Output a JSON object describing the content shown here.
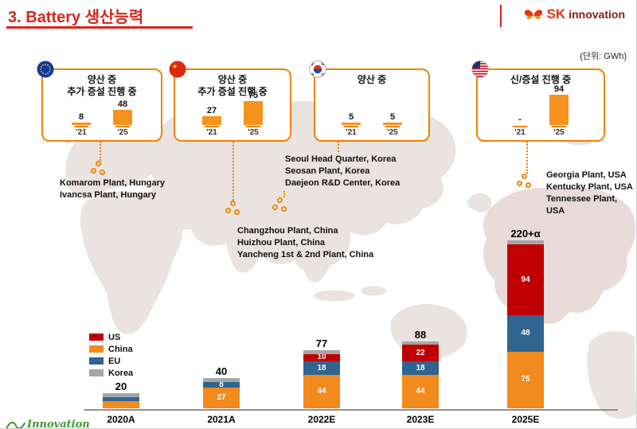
{
  "colors": {
    "accent_red": "#d9261c",
    "box_orange": "#f08300",
    "bar_orange": "#f5921e",
    "trend_blue": "#2e75b6",
    "us_red": "#c00000",
    "eu_blue": "#31648f",
    "korea_gray": "#a6a6a6",
    "map_fill": "#eae3e0"
  },
  "header": {
    "title": "3. Battery 생산능력",
    "unit_label": "(단위: GWh)",
    "logo_sk": "SK",
    "logo_innovation": "innovation"
  },
  "footer": {
    "logo_text": "Innovation"
  },
  "callouts": [
    {
      "id": "eu",
      "flag": "eu",
      "title_lines": [
        "양산 중",
        "추가 증설 진행 중"
      ],
      "mini_chart": {
        "bars": [
          {
            "x_label": "'21",
            "value_label": "8",
            "value": 8
          },
          {
            "x_label": "'25",
            "value_label": "48",
            "value": 48
          }
        ]
      }
    },
    {
      "id": "cn",
      "flag": "cn",
      "title_lines": [
        "양산 중",
        "추가 증설 진행 중"
      ],
      "mini_chart": {
        "bars": [
          {
            "x_label": "'21",
            "value_label": "27",
            "value": 27
          },
          {
            "x_label": "'25",
            "value_label": "75",
            "value": 75
          }
        ]
      }
    },
    {
      "id": "kr",
      "flag": "kr",
      "title_lines": [
        "양산 중"
      ],
      "mini_chart": {
        "bars": [
          {
            "x_label": "'21",
            "value_label": "5",
            "value": 5
          },
          {
            "x_label": "'25",
            "value_label": "5",
            "value": 5
          }
        ]
      }
    },
    {
      "id": "us",
      "flag": "us",
      "title_lines": [
        "신/증설 진행 중"
      ],
      "mini_chart": {
        "bars": [
          {
            "x_label": "'21",
            "value_label": "-",
            "value": 0
          },
          {
            "x_label": "'25",
            "value_label": "94",
            "value": 94
          }
        ]
      }
    }
  ],
  "plant_groups": [
    {
      "id": "eu",
      "lines": [
        "Komarom Plant, Hungary",
        "Ivancsa Plant, Hungary"
      ]
    },
    {
      "id": "kr",
      "lines": [
        "Seoul Head Quarter, Korea",
        "Seosan Plant, Korea",
        "Daejeon R&D Center, Korea"
      ]
    },
    {
      "id": "cn",
      "lines": [
        "Changzhou Plant, China",
        "Huizhou Plant, China",
        "Yancheng 1st & 2nd Plant, China"
      ]
    },
    {
      "id": "us",
      "lines": [
        "Georgia Plant, USA",
        "Kentucky Plant, USA",
        "Tennessee Plant, USA"
      ]
    }
  ],
  "chart_data": {
    "type": "bar",
    "stacked": true,
    "unit": "GWh",
    "title": "Battery 생산능력",
    "categories": [
      "2020A",
      "2021A",
      "2022E",
      "2023E",
      "2025E"
    ],
    "series": [
      {
        "name": "US",
        "color": "#c00000",
        "values": [
          0,
          0,
          10,
          22,
          94
        ],
        "labels": [
          "",
          "",
          "10",
          "22",
          "94"
        ]
      },
      {
        "name": "China",
        "color": "#f28a1e",
        "values": [
          10,
          27,
          44,
          44,
          75
        ],
        "labels": [
          "",
          "27",
          "44",
          "44",
          "75"
        ]
      },
      {
        "name": "EU",
        "color": "#31648f",
        "values": [
          5,
          8,
          18,
          18,
          48
        ],
        "labels": [
          "",
          "8",
          "18",
          "18",
          "48"
        ]
      },
      {
        "name": "Korea",
        "color": "#a6a6a6",
        "values": [
          5,
          5,
          5,
          4,
          5
        ],
        "labels": [
          "",
          "",
          "",
          "",
          ""
        ]
      }
    ],
    "stack_order": [
      "China",
      "EU",
      "US",
      "Korea"
    ],
    "totals": [
      "20",
      "40",
      "77",
      "88",
      "220+α"
    ],
    "legend_position": "left",
    "trendline": true
  }
}
